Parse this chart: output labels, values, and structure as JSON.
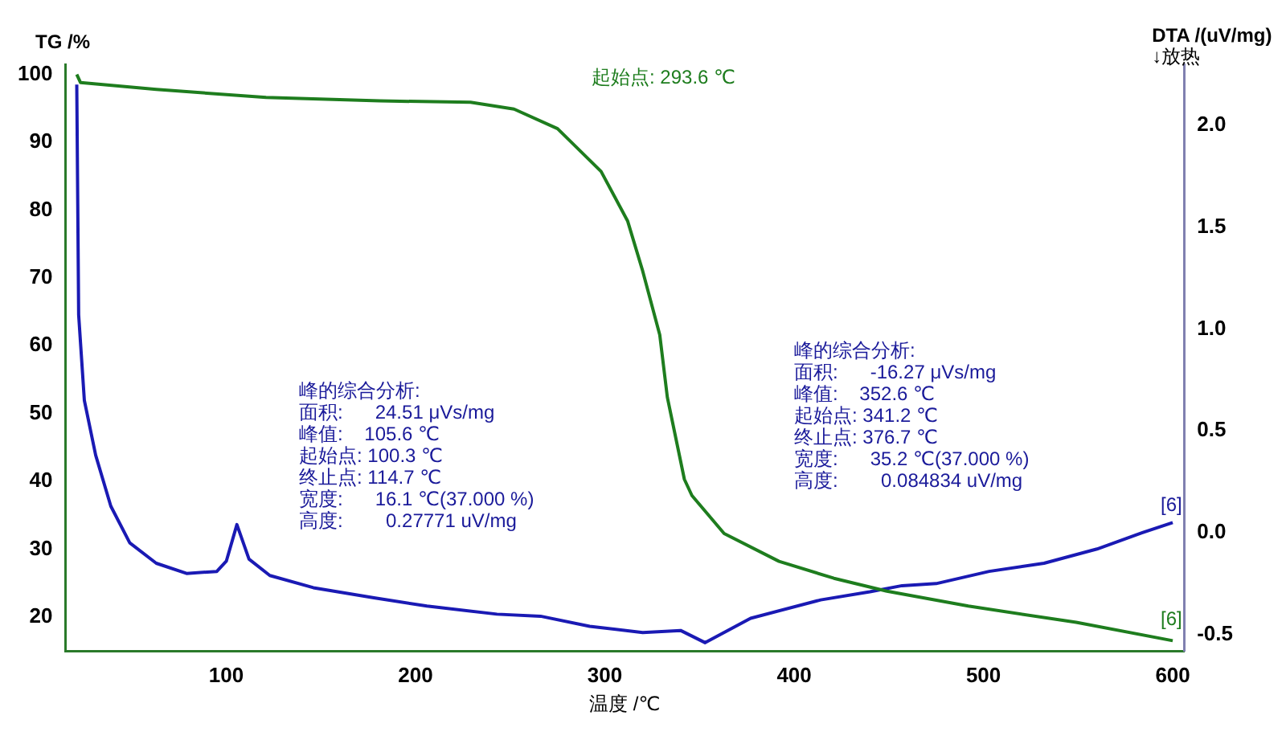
{
  "chart_data": {
    "type": "line",
    "xlabel": "温度 /℃",
    "ylabel": "TG /%",
    "y2label": "DTA /(uV/mg)\n↓放热",
    "xlim": [
      15,
      606
    ],
    "xticks": [
      100,
      200,
      300,
      400,
      500,
      600
    ],
    "ylim": [
      15,
      101.5
    ],
    "yticks": [
      20,
      30,
      40,
      50,
      60,
      70,
      80,
      90,
      100
    ],
    "y2lim": [
      -0.58,
      2.3
    ],
    "y2ticks": [
      {
        "value": -0.5,
        "label": "-0.5"
      },
      {
        "value": 0,
        "label": "0.0"
      },
      {
        "value": 0.5,
        "label": "0.5"
      },
      {
        "value": 1,
        "label": "1.0"
      },
      {
        "value": 1.5,
        "label": "1.5"
      },
      {
        "value": 2,
        "label": "2.0"
      }
    ],
    "grid": false,
    "legend": false,
    "marker": "none",
    "line_style": "solid",
    "series": [
      {
        "color": "#1e7d1e",
        "x": [
          21,
          23,
          63,
          121,
          181,
          229,
          252,
          275,
          298,
          312,
          320,
          329,
          333,
          342,
          346,
          363,
          392,
          421,
          449,
          492,
          549,
          600
        ],
        "values": [
          100,
          98.8,
          97.8,
          96.6,
          96.1,
          95.9,
          94.9,
          92,
          85.7,
          78.4,
          71,
          61.6,
          52.4,
          40.3,
          37.9,
          32.3,
          28.2,
          25.7,
          23.8,
          21.6,
          19.2,
          16.5
        ]
      },
      {
        "color": "#1a1ab4",
        "axis": "y2",
        "x": [
          21,
          22,
          25,
          31,
          39,
          49,
          63,
          79,
          95,
          100,
          105.6,
          112,
          123,
          146,
          178,
          206,
          243,
          266,
          292,
          320,
          340,
          353,
          377,
          414,
          440,
          457,
          475,
          503,
          532,
          560,
          584,
          600
        ],
        "values": [
          2.2,
          1.07,
          0.65,
          0.38,
          0.13,
          -0.05,
          -0.15,
          -0.2,
          -0.19,
          -0.14,
          0.04,
          -0.13,
          -0.21,
          -0.27,
          -0.32,
          -0.36,
          -0.4,
          -0.41,
          -0.46,
          -0.49,
          -0.48,
          -0.54,
          -0.42,
          -0.33,
          -0.29,
          -0.26,
          -0.25,
          -0.19,
          -0.15,
          -0.08,
          0,
          0.05
        ]
      }
    ],
    "annotations": [
      "起始点: 293.6 ℃",
      "峰的综合分析:\n面积:      24.51 μVs/mg\n峰值:    105.6 ℃\n起始点: 100.3 ℃\n终止点: 114.7 ℃\n宽度:      16.1 ℃(37.000 %)\n高度:        0.27771 uV/mg",
      "峰的综合分析:\n面积:      -16.27 μVs/mg\n峰值:    352.6 ℃\n起始点: 341.2 ℃\n终止点: 376.7 ℃\n宽度:      35.2 ℃(37.000 %)\n高度:        0.084834 uV/mg",
      "[6]",
      "[6]"
    ]
  }
}
